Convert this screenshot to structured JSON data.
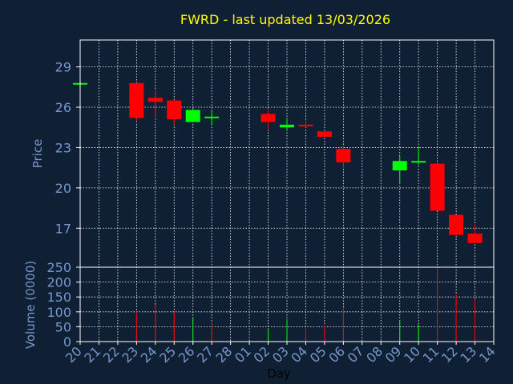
{
  "header": {
    "title": "FWRD - last updated 13/03/2026"
  },
  "colors": {
    "background": "#0f2035",
    "grid": "#ffffff",
    "axis_text": "#7896c8",
    "title": "#ffff00",
    "up": "#00ff00",
    "down": "#ff0000"
  },
  "chart_data": [
    {
      "type": "candlestick",
      "ylabel": "Price",
      "ylim": [
        14.1,
        31.0
      ],
      "y_ticks": [
        17,
        20,
        23,
        26,
        29
      ],
      "grid": true,
      "x_ticks": [
        "20",
        "21",
        "22",
        "23",
        "24",
        "25",
        "26",
        "27",
        "28",
        "01",
        "02",
        "03",
        "04",
        "05",
        "06",
        "07",
        "08",
        "09",
        "10",
        "11",
        "12",
        "13",
        "14"
      ],
      "candles": [
        {
          "day": "20",
          "open": 27.8,
          "high": 27.8,
          "low": 27.8,
          "close": 27.8
        },
        {
          "day": "23",
          "open": 27.8,
          "high": 27.8,
          "low": 25.0,
          "close": 25.2
        },
        {
          "day": "24",
          "open": 26.7,
          "high": 27.3,
          "low": 25.3,
          "close": 26.4
        },
        {
          "day": "25",
          "open": 26.5,
          "high": 26.5,
          "low": 24.7,
          "close": 25.1
        },
        {
          "day": "26",
          "open": 24.9,
          "high": 25.9,
          "low": 24.9,
          "close": 25.8
        },
        {
          "day": "27",
          "open": 25.3,
          "high": 25.7,
          "low": 24.7,
          "close": 25.3
        },
        {
          "day": "02",
          "open": 25.5,
          "high": 25.8,
          "low": 24.3,
          "close": 24.9
        },
        {
          "day": "03",
          "open": 24.5,
          "high": 25.2,
          "low": 24.3,
          "close": 24.7
        },
        {
          "day": "04",
          "open": 24.7,
          "high": 25.0,
          "low": 24.5,
          "close": 24.6
        },
        {
          "day": "05",
          "open": 24.2,
          "high": 24.2,
          "low": 23.8,
          "close": 23.8
        },
        {
          "day": "06",
          "open": 22.9,
          "high": 23.1,
          "low": 21.5,
          "close": 21.9
        },
        {
          "day": "09",
          "open": 21.3,
          "high": 22.4,
          "low": 20.3,
          "close": 22.0
        },
        {
          "day": "10",
          "open": 21.9,
          "high": 23.0,
          "low": 21.7,
          "close": 22.0
        },
        {
          "day": "11",
          "open": 21.8,
          "high": 21.8,
          "low": 18.3,
          "close": 18.3
        },
        {
          "day": "12",
          "open": 18.0,
          "high": 18.0,
          "low": 16.5,
          "close": 16.5
        },
        {
          "day": "13",
          "open": 16.6,
          "high": 17.3,
          "low": 15.9,
          "close": 15.9
        }
      ]
    },
    {
      "type": "bar",
      "ylabel": "Volume (0000)",
      "xlabel": "Day",
      "ylim": [
        0,
        250
      ],
      "y_ticks": [
        0,
        50,
        100,
        150,
        200,
        250
      ],
      "grid": true,
      "x_ticks": [
        "20",
        "21",
        "22",
        "23",
        "24",
        "25",
        "26",
        "27",
        "28",
        "01",
        "02",
        "03",
        "04",
        "05",
        "06",
        "07",
        "08",
        "09",
        "10",
        "11",
        "12",
        "13",
        "14"
      ],
      "bars": [
        {
          "day": "20",
          "value": 1,
          "dir": "down"
        },
        {
          "day": "23",
          "value": 100,
          "dir": "down"
        },
        {
          "day": "24",
          "value": 125,
          "dir": "down"
        },
        {
          "day": "25",
          "value": 100,
          "dir": "down"
        },
        {
          "day": "26",
          "value": 80,
          "dir": "up"
        },
        {
          "day": "27",
          "value": 65,
          "dir": "down"
        },
        {
          "day": "02",
          "value": 45,
          "dir": "up"
        },
        {
          "day": "03",
          "value": 75,
          "dir": "up"
        },
        {
          "day": "04",
          "value": 45,
          "dir": "down"
        },
        {
          "day": "05",
          "value": 55,
          "dir": "down"
        },
        {
          "day": "06",
          "value": 115,
          "dir": "down"
        },
        {
          "day": "09",
          "value": 72,
          "dir": "up"
        },
        {
          "day": "10",
          "value": 58,
          "dir": "up"
        },
        {
          "day": "11",
          "value": 245,
          "dir": "down"
        },
        {
          "day": "12",
          "value": 160,
          "dir": "down"
        },
        {
          "day": "13",
          "value": 145,
          "dir": "down"
        }
      ]
    }
  ]
}
